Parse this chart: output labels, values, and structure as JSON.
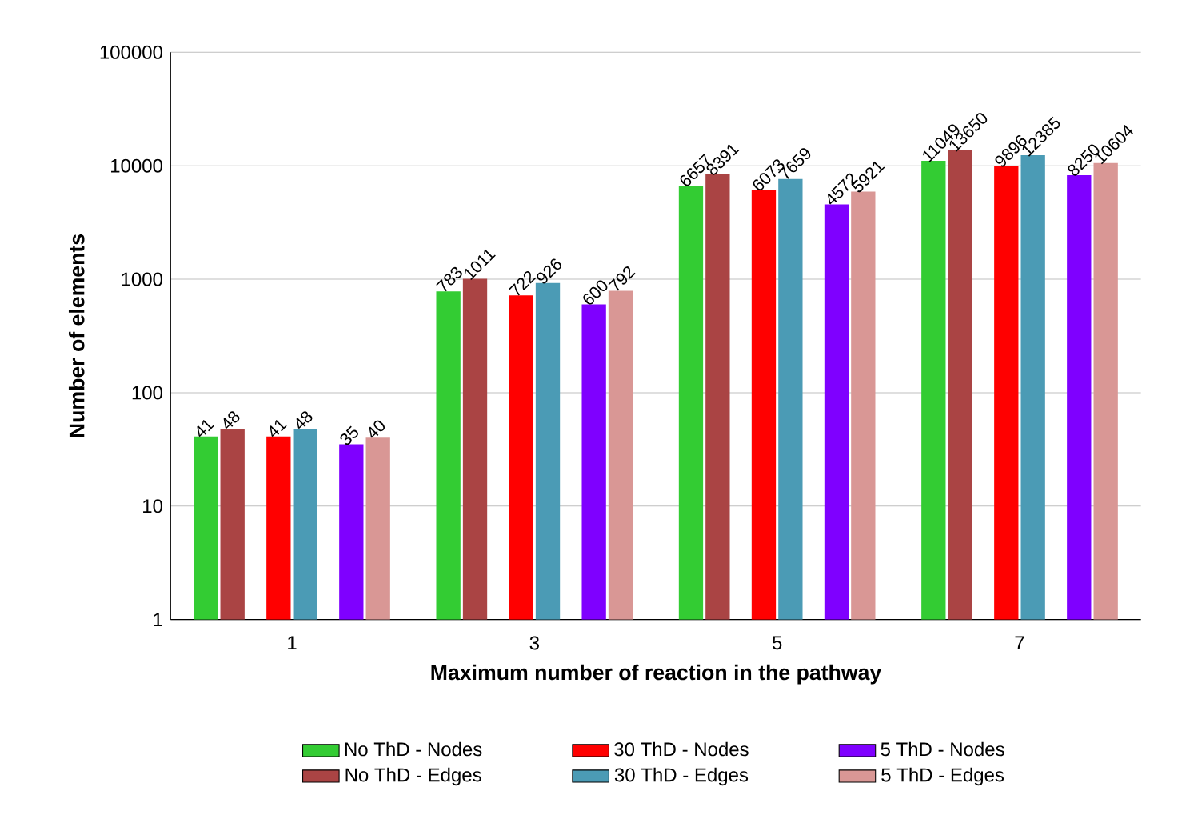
{
  "chart_data": {
    "type": "bar",
    "xlabel": "Maximum number of reaction in the pathway",
    "ylabel": "Number of elements",
    "categories": [
      "1",
      "3",
      "5",
      "7"
    ],
    "series": [
      {
        "name": "No ThD - Nodes",
        "color": "#33cc33",
        "values": [
          41,
          783,
          6657,
          11049
        ]
      },
      {
        "name": "30 ThD - Nodes",
        "color": "#ff0000",
        "values": [
          41,
          722,
          6073,
          9896
        ]
      },
      {
        "name": "5 ThD - Nodes",
        "color": "#7f00ff",
        "values": [
          35,
          600,
          4572,
          8250
        ]
      },
      {
        "name": "No ThD - Edges",
        "color": "#aa4444",
        "values": [
          48,
          1011,
          8391,
          13650
        ]
      },
      {
        "name": "30 ThD - Edges",
        "color": "#4b9bb5",
        "values": [
          48,
          926,
          7659,
          12385
        ]
      },
      {
        "name": "5 ThD - Edges",
        "color": "#d99795",
        "values": [
          40,
          792,
          5921,
          10604
        ]
      }
    ],
    "ylim": [
      1,
      100000
    ],
    "yticks": [
      1,
      10,
      100,
      1000,
      10000,
      100000
    ],
    "log": true,
    "grid": "y",
    "legend": "bottom",
    "data_labels": true
  }
}
